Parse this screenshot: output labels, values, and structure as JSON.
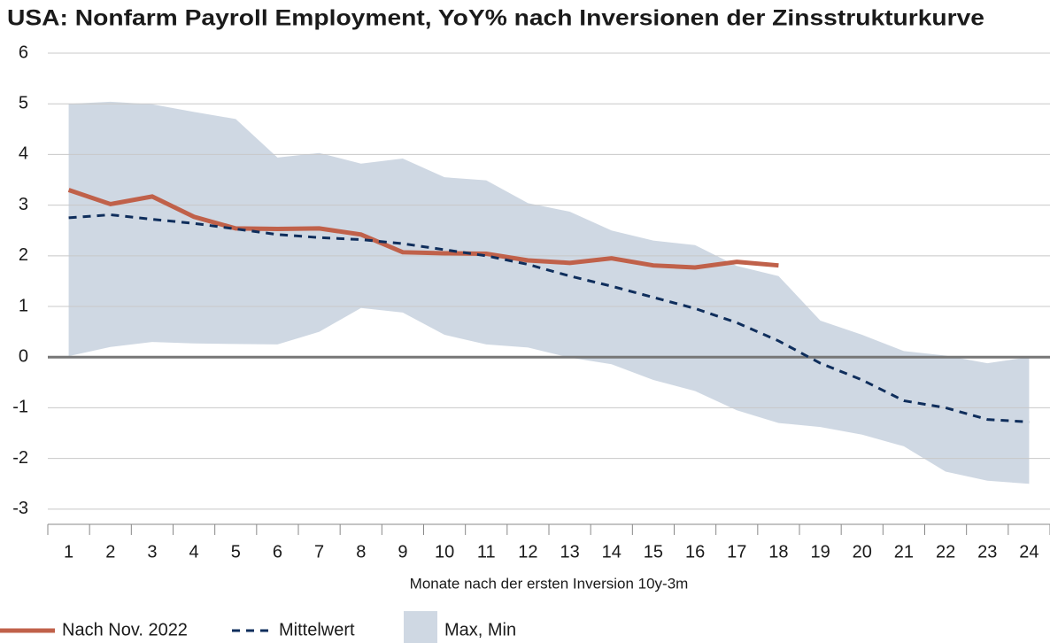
{
  "chart_data": {
    "type": "line",
    "title": "USA: Nonfarm Payroll Employment, YoY% nach Inversionen der Zinsstrukturkurve",
    "x_label": "Monate nach der ersten Inversion 10y-3m",
    "categories": [
      "1",
      "2",
      "3",
      "4",
      "5",
      "6",
      "7",
      "8",
      "9",
      "10",
      "11",
      "12",
      "13",
      "14",
      "15",
      "16",
      "17",
      "18",
      "19",
      "20",
      "21",
      "22",
      "23",
      "24"
    ],
    "band": {
      "name": "Max, Min",
      "color": "#cfd8e3",
      "max": [
        5.0,
        5.04,
        4.99,
        4.84,
        4.7,
        3.94,
        4.03,
        3.82,
        3.92,
        3.55,
        3.49,
        3.04,
        2.87,
        2.5,
        2.3,
        2.21,
        1.8,
        1.6,
        0.72,
        0.44,
        0.12,
        0.03,
        -0.12,
        0.0
      ],
      "min": [
        0.02,
        0.2,
        0.3,
        0.27,
        0.26,
        0.25,
        0.5,
        0.97,
        0.88,
        0.44,
        0.25,
        0.19,
        -0.01,
        -0.14,
        -0.45,
        -0.67,
        -1.05,
        -1.3,
        -1.38,
        -1.53,
        -1.76,
        -2.26,
        -2.44,
        -2.5
      ]
    },
    "series": [
      {
        "name": "Nach Nov. 2022",
        "color": "#c0614a",
        "style": "solid",
        "values": [
          3.3,
          3.02,
          3.17,
          2.77,
          2.54,
          2.53,
          2.54,
          2.42,
          2.07,
          2.05,
          2.04,
          1.91,
          1.86,
          1.95,
          1.81,
          1.77,
          1.88,
          1.81,
          null,
          null,
          null,
          null,
          null,
          null
        ]
      },
      {
        "name": "Mittelwert",
        "color": "#0f2e5c",
        "style": "dashed",
        "values": [
          2.75,
          2.81,
          2.72,
          2.64,
          2.53,
          2.42,
          2.36,
          2.32,
          2.24,
          2.12,
          2.0,
          1.83,
          1.6,
          1.4,
          1.18,
          0.96,
          0.68,
          0.32,
          -0.12,
          -0.45,
          -0.86,
          -1.0,
          -1.23,
          -1.28
        ]
      }
    ],
    "ylim": [
      -3.3,
      6
    ],
    "yticks": [
      -3,
      -2,
      -1,
      0,
      1,
      2,
      3,
      4,
      5,
      6
    ],
    "grid": true
  }
}
